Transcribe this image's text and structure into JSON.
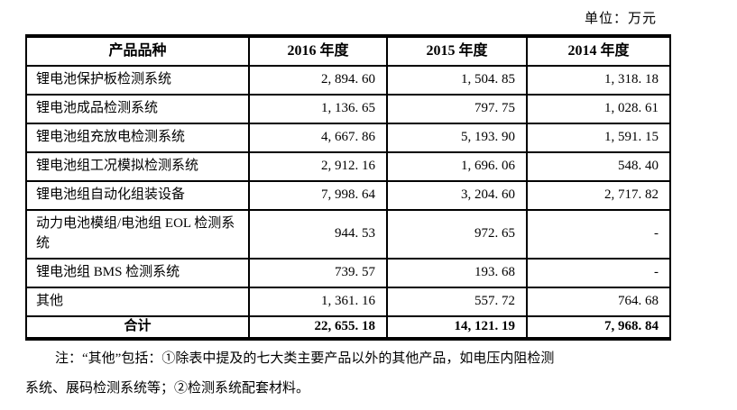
{
  "page": {
    "unit_label": "单位：万元"
  },
  "table": {
    "headers": [
      "产品品种",
      "2016 年度",
      "2015 年度",
      "2014 年度"
    ],
    "rows": [
      [
        "锂电池保护板检测系统",
        "2, 894. 60",
        "1, 504. 85",
        "1, 318. 18"
      ],
      [
        "锂电池成品检测系统",
        "1, 136. 65",
        "797. 75",
        "1, 028. 61"
      ],
      [
        "锂电池组充放电检测系统",
        "4, 667. 86",
        "5, 193. 90",
        "1, 591. 15"
      ],
      [
        "锂电池组工况模拟检测系统",
        "2, 912. 16",
        "1, 696. 06",
        "548. 40"
      ],
      [
        "锂电池组自动化组装设备",
        "7, 998. 64",
        "3, 204. 60",
        "2, 717. 82"
      ],
      [
        "动力电池模组/电池组 EOL 检测系统",
        "944. 53",
        "972. 65",
        "-"
      ],
      [
        "锂电池组 BMS 检测系统",
        "739. 57",
        "193. 68",
        "-"
      ],
      [
        "其他",
        "1, 361. 16",
        "557. 72",
        "764. 68"
      ]
    ],
    "total_row": [
      "合计",
      "22, 655. 18",
      "14, 121. 19",
      "7, 968. 84"
    ]
  },
  "note": {
    "lines": [
      "注：“其他”包括：①除表中提及的七大类主要产品以外的其他产品，如电压内阻检测",
      "系统、展码检测系统等；②检测系统配套材料。"
    ]
  }
}
